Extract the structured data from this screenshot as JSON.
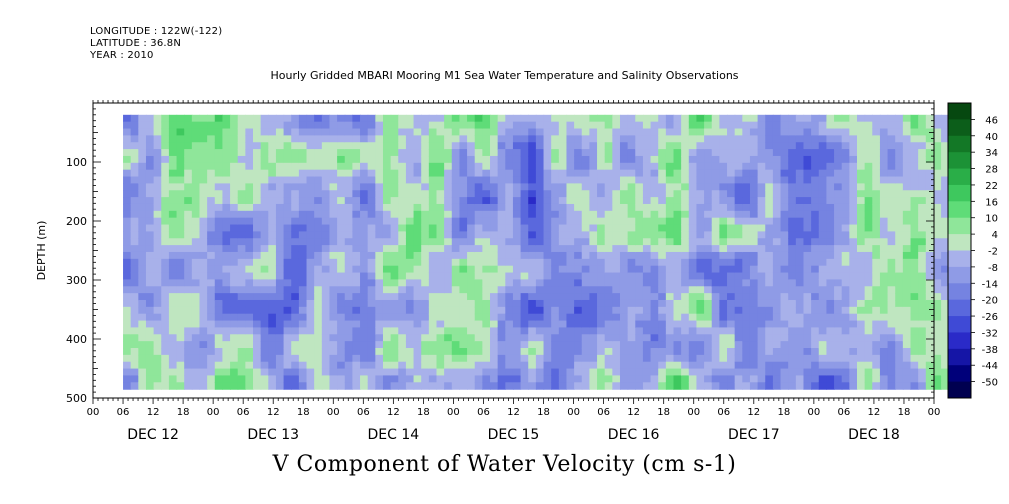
{
  "header": {
    "longitude": "LONGITUDE : 122W(-122)",
    "latitude": "LATITUDE : 36.8N",
    "year": "YEAR : 2010"
  },
  "chart_data": {
    "type": "heatmap",
    "title": "Hourly Gridded MBARI Mooring M1 Sea Water Temperature and Salinity Observations",
    "caption": "V Component of Water Velocity (cm s-1)",
    "ylabel": "DEPTH (m)",
    "y_range": [
      0,
      500
    ],
    "y_ticks": [
      100,
      200,
      300,
      400,
      500
    ],
    "y_tick_labels": [
      "100",
      "200",
      "300",
      "400",
      "500"
    ],
    "x_hour_ticks": [
      "00",
      "06",
      "12",
      "18",
      "00",
      "06",
      "12",
      "18",
      "00",
      "06",
      "12",
      "18",
      "00",
      "06",
      "12",
      "18",
      "00",
      "06",
      "12",
      "18",
      "00",
      "06",
      "12",
      "18",
      "00",
      "06",
      "12",
      "18",
      "00"
    ],
    "x_day_labels": [
      "DEC 12",
      "DEC 13",
      "DEC 14",
      "DEC 15",
      "DEC 16",
      "DEC 17",
      "DEC 18"
    ],
    "data_extent": {
      "time_start_hours": 6,
      "time_end_hours": 174,
      "depth_top": 20,
      "depth_bottom": 485
    },
    "colorbar": {
      "levels": [
        -50,
        -44,
        -38,
        -32,
        -26,
        -20,
        -14,
        -8,
        -2,
        4,
        10,
        16,
        22,
        28,
        34,
        40,
        46
      ],
      "labels": [
        "46",
        "40",
        "34",
        "28",
        "22",
        "16",
        "10",
        "4",
        "-2",
        "-8",
        "-14",
        "-20",
        "-26",
        "-32",
        "-38",
        "-44",
        "-50"
      ],
      "colors": [
        "#000050",
        "#00007a",
        "#1515a6",
        "#2a2ac8",
        "#3f4ad6",
        "#5a68dd",
        "#7583e1",
        "#8f9be6",
        "#a8b1ea",
        "#bfe6c0",
        "#8fe69a",
        "#5fdc78",
        "#3ec85e",
        "#2aae48",
        "#1c9236",
        "#137826",
        "#0c5e1a",
        "#064810"
      ]
    },
    "grid": false
  }
}
